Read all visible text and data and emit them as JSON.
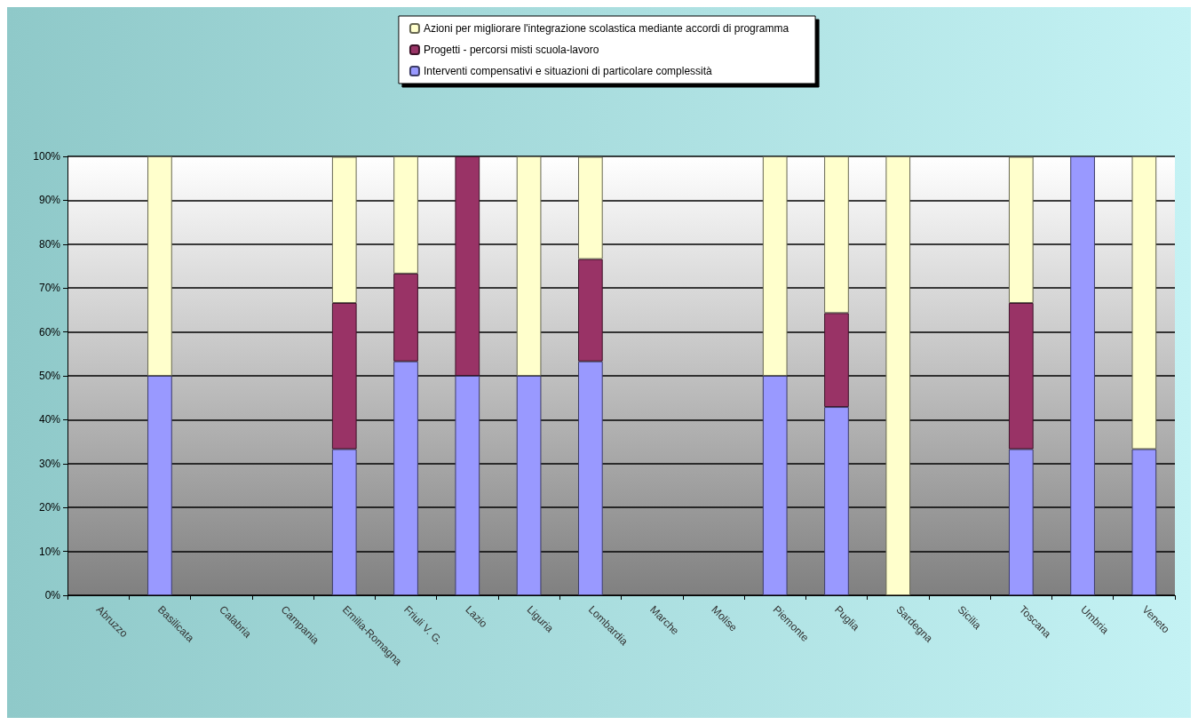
{
  "chart_data": {
    "type": "bar",
    "stacked": true,
    "categories": [
      "Abruzzo",
      "Basilicata",
      "Calabria",
      "Campania",
      "Emilia-Romagna",
      "Friuli V. G.",
      "Lazio",
      "Liguria",
      "Lombardia",
      "Marche",
      "Molise",
      "Piemonte",
      "Puglia",
      "Sardegna",
      "Sicilia",
      "Toscana",
      "Umbria",
      "Veneto"
    ],
    "series": [
      {
        "name": "Interventi compensativi e situazioni di particolare complessità",
        "color": "#9999ff",
        "values": [
          null,
          50,
          null,
          null,
          33.3,
          53.3,
          50,
          50,
          53.3,
          null,
          null,
          50,
          42.9,
          null,
          null,
          33.3,
          100,
          33.3
        ]
      },
      {
        "name": "Progetti - percorsi misti scuola-lavoro",
        "color": "#993366",
        "values": [
          null,
          null,
          null,
          null,
          33.3,
          20,
          50,
          null,
          23.3,
          null,
          null,
          null,
          21.4,
          null,
          null,
          33.3,
          null,
          null
        ]
      },
      {
        "name": "Azioni per migliorare l'integrazione scolastica mediante accordi di programma",
        "color": "#ffffcc",
        "values": [
          null,
          50,
          null,
          null,
          33.3,
          26.7,
          null,
          50,
          23.3,
          null,
          null,
          50,
          35.7,
          100,
          null,
          33.3,
          null,
          66.7
        ]
      }
    ],
    "ylim": [
      0,
      100
    ],
    "yticks": [
      {
        "value": 0,
        "label": "0%"
      },
      {
        "value": 10,
        "label": "10%"
      },
      {
        "value": 20,
        "label": "20%"
      },
      {
        "value": 30,
        "label": "30%"
      },
      {
        "value": 40,
        "label": "40%"
      },
      {
        "value": 50,
        "label": "50%"
      },
      {
        "value": 60,
        "label": "60%"
      },
      {
        "value": 70,
        "label": "70%"
      },
      {
        "value": 80,
        "label": "80%"
      },
      {
        "value": 90,
        "label": "90%"
      },
      {
        "value": 100,
        "label": "100%"
      }
    ],
    "grid": "y",
    "legend": "top"
  }
}
